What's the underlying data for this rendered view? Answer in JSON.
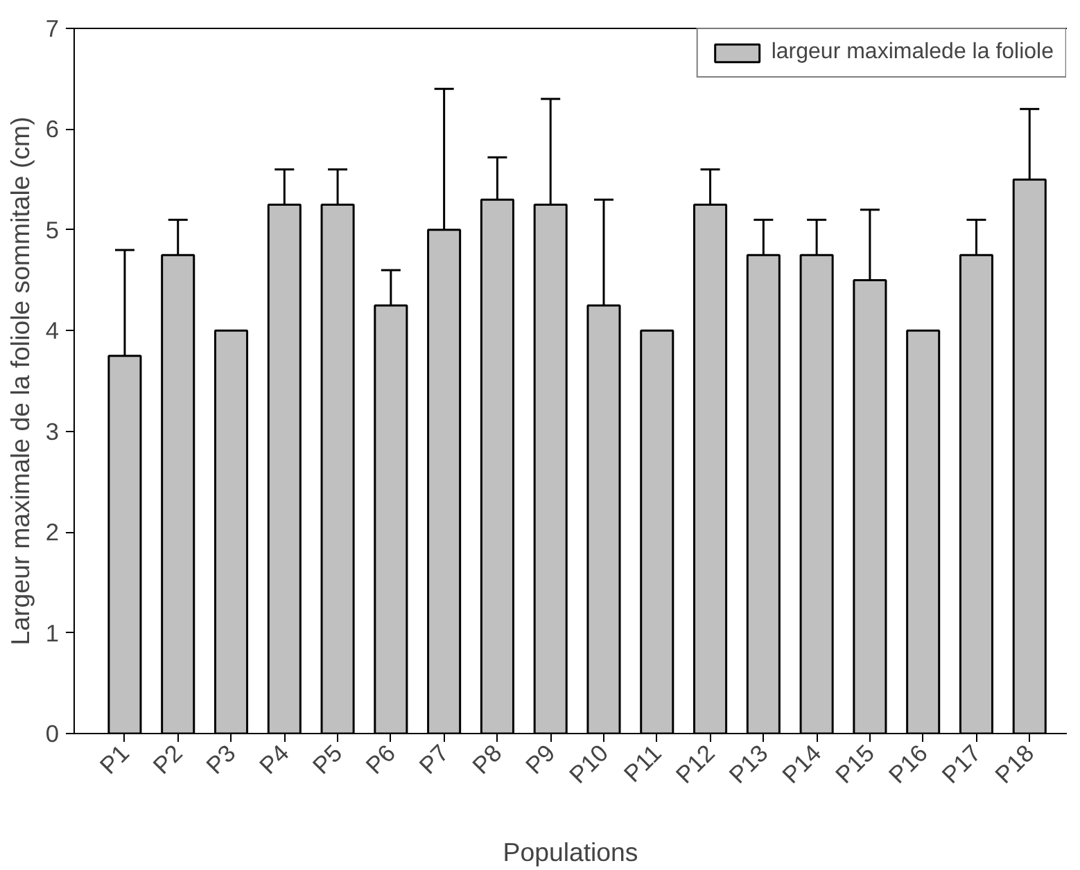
{
  "chart_data": {
    "type": "bar",
    "xlabel": "Populations",
    "ylabel": "Largeur maximale de la foliole sommitale (cm)",
    "categories": [
      "P1",
      "P2",
      "P3",
      "P4",
      "P5",
      "P6",
      "P7",
      "P8",
      "P9",
      "P10",
      "P11",
      "P12",
      "P13",
      "P14",
      "P15",
      "P16",
      "P17",
      "P18"
    ],
    "series": [
      {
        "name": "largeur maximalede la foliole",
        "color": "#c0c0c0",
        "values": [
          3.75,
          4.75,
          4.0,
          5.25,
          5.25,
          4.25,
          5.0,
          5.3,
          5.25,
          4.25,
          4.0,
          5.25,
          4.75,
          4.75,
          4.5,
          4.0,
          4.75,
          5.5
        ],
        "errors": [
          [
            3.75,
            4.8
          ],
          [
            4.75,
            5.1
          ],
          null,
          [
            5.25,
            5.6
          ],
          [
            5.25,
            5.6
          ],
          [
            4.25,
            4.6
          ],
          [
            5.0,
            6.4
          ],
          [
            5.3,
            5.72
          ],
          [
            5.25,
            6.3
          ],
          [
            4.25,
            5.3
          ],
          null,
          [
            5.25,
            5.6
          ],
          [
            4.75,
            5.1
          ],
          [
            4.75,
            5.1
          ],
          [
            4.5,
            5.2
          ],
          null,
          [
            4.75,
            5.1
          ],
          [
            5.5,
            6.2
          ]
        ]
      }
    ],
    "ylim": [
      0,
      7
    ],
    "yticks": [
      0,
      1,
      2,
      3,
      4,
      5,
      6,
      7
    ],
    "grid": false,
    "legend": "top right"
  }
}
